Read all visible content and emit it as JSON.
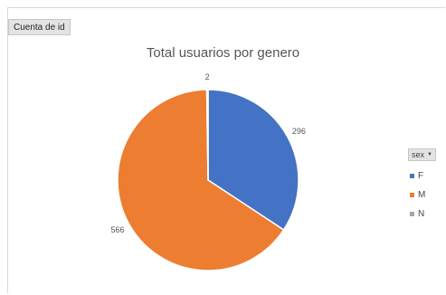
{
  "field_button": {
    "label": "Cuenta de id"
  },
  "legend_filter": {
    "label": "sex",
    "dropdown_icon": "chevron-down-icon"
  },
  "chart_data": {
    "type": "pie",
    "title": "Total usuarios por genero",
    "slices": [
      {
        "label": "F",
        "value": 296,
        "color": "#4472C4"
      },
      {
        "label": "M",
        "value": 566,
        "color": "#ED7D31"
      },
      {
        "label": "N",
        "value": 2,
        "color": "#A5A5A5"
      }
    ],
    "legend_position": "right",
    "start_angle": "top, clockwise"
  }
}
